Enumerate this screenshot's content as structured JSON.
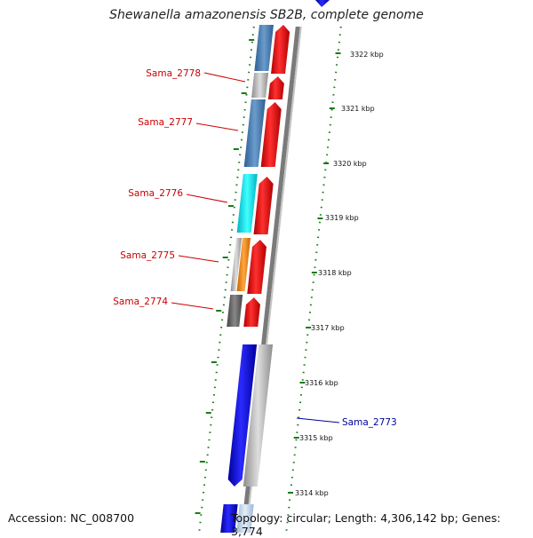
{
  "title": "Shewanella amazonensis SB2B, complete genome",
  "accession": "Accession: NC_008700",
  "topology": "Topology: circular; Length: 4,306,142 bp; Genes: 3,774",
  "ticks": [
    "3322 kbp",
    "3321 kbp",
    "3320 kbp",
    "3319 kbp",
    "3318 kbp",
    "3317 kbp",
    "3316 kbp",
    "3315 kbp",
    "3314 kbp"
  ],
  "gene_labels": [
    {
      "text": "Sama_2778",
      "color": "#cc0000"
    },
    {
      "text": "Sama_2777",
      "color": "#cc0000"
    },
    {
      "text": "Sama_2776",
      "color": "#cc0000"
    },
    {
      "text": "Sama_2775",
      "color": "#cc0000"
    },
    {
      "text": "Sama_2774",
      "color": "#cc0000"
    },
    {
      "text": "Sama_2773",
      "color": "#000099"
    }
  ],
  "colors": {
    "forward_strand": "#ff0000",
    "reverse_strand": "#0000ff",
    "backbone": "#808080",
    "gc_skew_dots": "#1a7a1a",
    "steelblue": "#4a7fb5",
    "cyan": "#00e5ee",
    "orange": "#ff8c00",
    "grey": "#b8b8b8",
    "darkgrey": "#666666"
  }
}
